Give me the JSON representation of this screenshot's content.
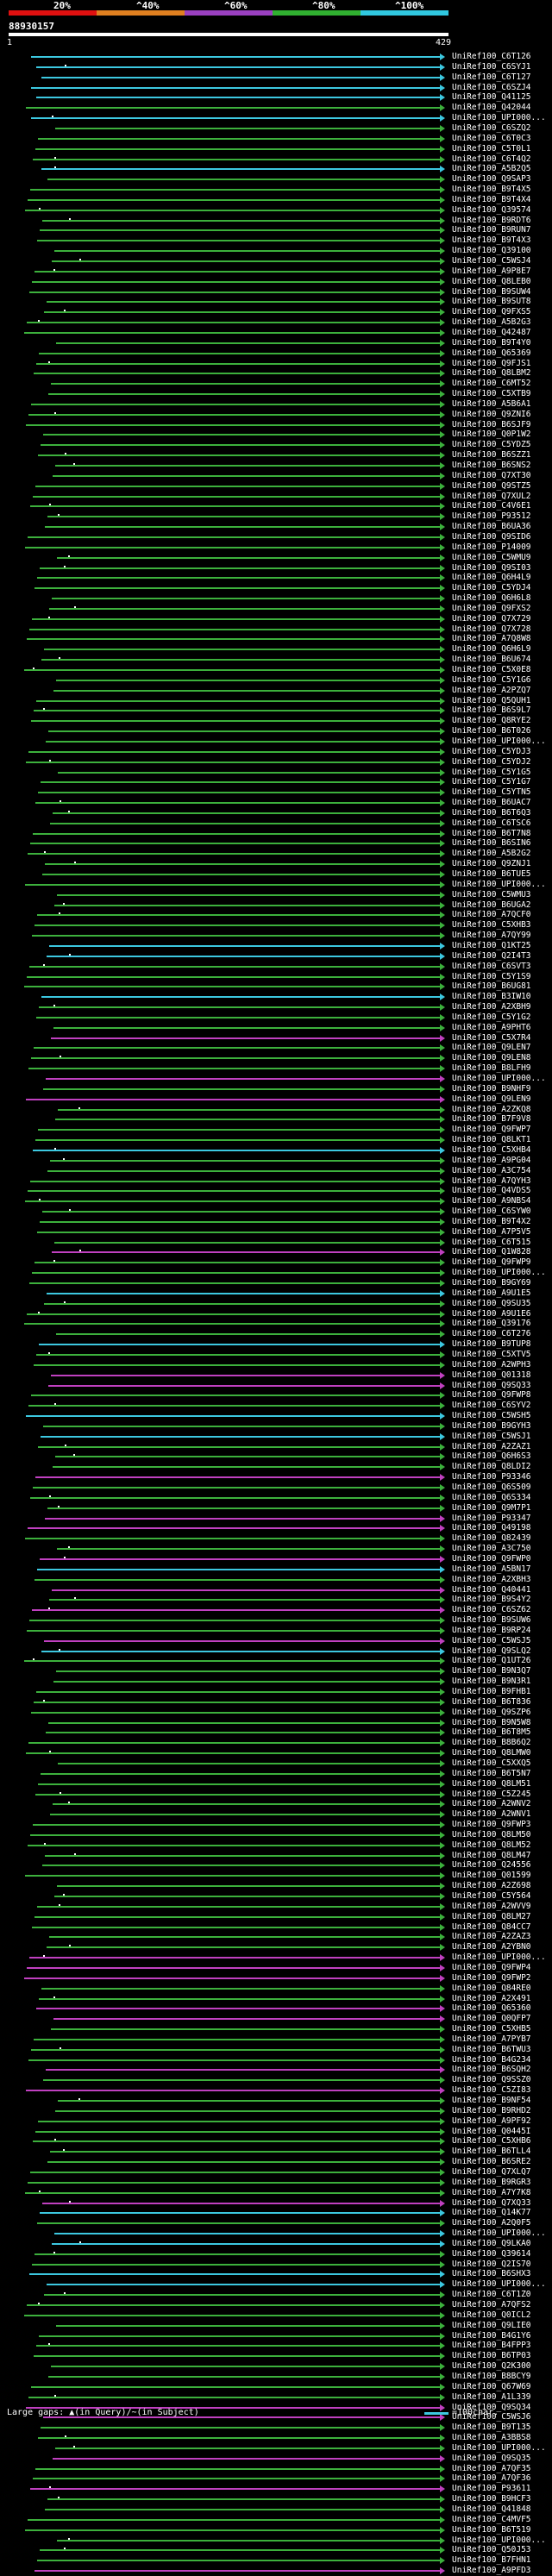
{
  "header": {
    "percent_labels": [
      "20%",
      "^40%",
      "^60%",
      "^80%",
      "^100%"
    ],
    "percent_colors": [
      "#e01010",
      "#e08020",
      "#9a40c0",
      "#30b030",
      "#30c8e0"
    ],
    "query_id": "88930157",
    "start_pos": "1",
    "end_pos": "429"
  },
  "colors": {
    "green": "#3cb03c",
    "cyan": "#3cc8e0",
    "magenta": "#c040c0",
    "white": "#ffffff"
  },
  "hits": [
    {
      "label": "UniRef100_C6T126",
      "color": "cyan"
    },
    {
      "label": "UniRef100_C6SYJ1",
      "color": "cyan"
    },
    {
      "label": "UniRef100_C6T127",
      "color": "cyan"
    },
    {
      "label": "UniRef100_C6SZJ4",
      "color": "cyan"
    },
    {
      "label": "UniRef100_Q41125",
      "color": "cyan"
    },
    {
      "label": "UniRef100_Q42044",
      "color": "green"
    },
    {
      "label": "UniRef100_UPI000...",
      "color": "cyan"
    },
    {
      "label": "UniRef100_C6SZQ2",
      "color": "green"
    },
    {
      "label": "UniRef100_C6T0C3",
      "color": "green"
    },
    {
      "label": "UniRef100_C5T0L1",
      "color": "green"
    },
    {
      "label": "UniRef100_C6T4Q2",
      "color": "green"
    },
    {
      "label": "UniRef100_A5B2Q5",
      "color": "cyan"
    },
    {
      "label": "UniRef100_Q9SAP3",
      "color": "green"
    },
    {
      "label": "UniRef100_B9T4X5",
      "color": "green"
    },
    {
      "label": "UniRef100_B9T4X4",
      "color": "green"
    },
    {
      "label": "UniRef100_Q39574",
      "color": "green"
    },
    {
      "label": "UniRef100_B9RDT6",
      "color": "green"
    },
    {
      "label": "UniRef100_B9RUN7",
      "color": "green"
    },
    {
      "label": "UniRef100_B9T4X3",
      "color": "green"
    },
    {
      "label": "UniRef100_Q39100",
      "color": "green"
    },
    {
      "label": "UniRef100_C5WSJ4",
      "color": "green"
    },
    {
      "label": "UniRef100_A9P8E7",
      "color": "green"
    },
    {
      "label": "UniRef100_Q8LEB0",
      "color": "green"
    },
    {
      "label": "UniRef100_B9SUW4",
      "color": "green"
    },
    {
      "label": "UniRef100_B9SUT8",
      "color": "green"
    },
    {
      "label": "UniRef100_Q9FXS5",
      "color": "green"
    },
    {
      "label": "UniRef100_A5B2G3",
      "color": "green"
    },
    {
      "label": "UniRef100_Q42487",
      "color": "green"
    },
    {
      "label": "UniRef100_B9T4Y0",
      "color": "green"
    },
    {
      "label": "UniRef100_Q65369",
      "color": "green"
    },
    {
      "label": "UniRef100_Q9FJS1",
      "color": "green"
    },
    {
      "label": "UniRef100_Q8LBM2",
      "color": "green"
    },
    {
      "label": "UniRef100_C6MT52",
      "color": "green"
    },
    {
      "label": "UniRef100_C5XTB9",
      "color": "green"
    },
    {
      "label": "UniRef100_A5B6A1",
      "color": "green"
    },
    {
      "label": "UniRef100_Q9ZNI6",
      "color": "green"
    },
    {
      "label": "UniRef100_B6SJF9",
      "color": "green"
    },
    {
      "label": "UniRef100_Q0P1W2",
      "color": "green"
    },
    {
      "label": "UniRef100_C5YDZ5",
      "color": "green"
    },
    {
      "label": "UniRef100_B6SZZ1",
      "color": "green"
    },
    {
      "label": "UniRef100_B6SNS2",
      "color": "green"
    },
    {
      "label": "UniRef100_Q7XT30",
      "color": "green"
    },
    {
      "label": "UniRef100_Q9STZ5",
      "color": "green"
    },
    {
      "label": "UniRef100_Q7XUL2",
      "color": "green"
    },
    {
      "label": "UniRef100_C4V6E1",
      "color": "green"
    },
    {
      "label": "UniRef100_P93512",
      "color": "green"
    },
    {
      "label": "UniRef100_B6UA36",
      "color": "green"
    },
    {
      "label": "UniRef100_Q9SID6",
      "color": "green"
    },
    {
      "label": "UniRef100_P14009",
      "color": "green"
    },
    {
      "label": "UniRef100_C5WMU9",
      "color": "green"
    },
    {
      "label": "UniRef100_Q9SI03",
      "color": "green"
    },
    {
      "label": "UniRef100_Q6H4L9",
      "color": "green"
    },
    {
      "label": "UniRef100_C5YDJ4",
      "color": "green"
    },
    {
      "label": "UniRef100_Q6H6L8",
      "color": "green"
    },
    {
      "label": "UniRef100_Q9FXS2",
      "color": "green"
    },
    {
      "label": "UniRef100_Q7X729",
      "color": "green"
    },
    {
      "label": "UniRef100_Q7X728",
      "color": "green"
    },
    {
      "label": "UniRef100_A7Q8W8",
      "color": "green"
    },
    {
      "label": "UniRef100_Q6H6L9",
      "color": "green"
    },
    {
      "label": "UniRef100_B6U674",
      "color": "green"
    },
    {
      "label": "UniRef100_C5X0E8",
      "color": "green"
    },
    {
      "label": "UniRef100_C5Y1G6",
      "color": "green"
    },
    {
      "label": "UniRef100_A2PZQ7",
      "color": "green"
    },
    {
      "label": "UniRef100_Q5QUH1",
      "color": "green"
    },
    {
      "label": "UniRef100_B6S9L7",
      "color": "green"
    },
    {
      "label": "UniRef100_Q8RYE2",
      "color": "green"
    },
    {
      "label": "UniRef100_B6T026",
      "color": "green"
    },
    {
      "label": "UniRef100_UPI000...",
      "color": "green"
    },
    {
      "label": "UniRef100_C5YDJ3",
      "color": "green"
    },
    {
      "label": "UniRef100_C5YDJ2",
      "color": "green"
    },
    {
      "label": "UniRef100_C5Y1G5",
      "color": "green"
    },
    {
      "label": "UniRef100_C5Y1G7",
      "color": "green"
    },
    {
      "label": "UniRef100_C5YTN5",
      "color": "green"
    },
    {
      "label": "UniRef100_B6UAC7",
      "color": "green"
    },
    {
      "label": "UniRef100_B6T6Q3",
      "color": "green"
    },
    {
      "label": "UniRef100_C6TSC6",
      "color": "green"
    },
    {
      "label": "UniRef100_B6T7N8",
      "color": "green"
    },
    {
      "label": "UniRef100_B6SIN6",
      "color": "green"
    },
    {
      "label": "UniRef100_A5B2G2",
      "color": "green"
    },
    {
      "label": "UniRef100_Q9ZNJ1",
      "color": "green"
    },
    {
      "label": "UniRef100_B6TUE5",
      "color": "green"
    },
    {
      "label": "UniRef100_UPI000...",
      "color": "green"
    },
    {
      "label": "UniRef100_C5WMU3",
      "color": "green"
    },
    {
      "label": "UniRef100_B6UGA2",
      "color": "green"
    },
    {
      "label": "UniRef100_A7QCF0",
      "color": "green"
    },
    {
      "label": "UniRef100_C5XHB3",
      "color": "green"
    },
    {
      "label": "UniRef100_A7QY99",
      "color": "green"
    },
    {
      "label": "UniRef100_Q1KT25",
      "color": "cyan"
    },
    {
      "label": "UniRef100_Q2I4T3",
      "color": "cyan"
    },
    {
      "label": "UniRef100_C6SVT3",
      "color": "green"
    },
    {
      "label": "UniRef100_C5Y1S9",
      "color": "green"
    },
    {
      "label": "UniRef100_B6UG81",
      "color": "green"
    },
    {
      "label": "UniRef100_B3IW10",
      "color": "cyan"
    },
    {
      "label": "UniRef100_A2XBH9",
      "color": "green"
    },
    {
      "label": "UniRef100_C5Y1G2",
      "color": "green"
    },
    {
      "label": "UniRef100_A9PHT6",
      "color": "green"
    },
    {
      "label": "UniRef100_C5X7R4",
      "color": "magenta"
    },
    {
      "label": "UniRef100_Q9LEN7",
      "color": "green"
    },
    {
      "label": "UniRef100_Q9LEN8",
      "color": "green"
    },
    {
      "label": "UniRef100_B8LFH9",
      "color": "green"
    },
    {
      "label": "UniRef100_UPI000...",
      "color": "magenta"
    },
    {
      "label": "UniRef100_B9NHF9",
      "color": "green"
    },
    {
      "label": "UniRef100_Q9LEN9",
      "color": "magenta"
    },
    {
      "label": "UniRef100_A2ZKQ8",
      "color": "green"
    },
    {
      "label": "UniRef100_B7F9V8",
      "color": "green"
    },
    {
      "label": "UniRef100_Q9FWP7",
      "color": "green"
    },
    {
      "label": "UniRef100_Q8LKT1",
      "color": "green"
    },
    {
      "label": "UniRef100_C5XHB4",
      "color": "cyan"
    },
    {
      "label": "UniRef100_A9PG04",
      "color": "green"
    },
    {
      "label": "UniRef100_A3C754",
      "color": "green"
    },
    {
      "label": "UniRef100_A7QYH3",
      "color": "green"
    },
    {
      "label": "UniRef100_Q4VDS5",
      "color": "green"
    },
    {
      "label": "UniRef100_A9NBS4",
      "color": "green"
    },
    {
      "label": "UniRef100_C6SYW0",
      "color": "green"
    },
    {
      "label": "UniRef100_B9T4X2",
      "color": "green"
    },
    {
      "label": "UniRef100_A7P5V5",
      "color": "green"
    },
    {
      "label": "UniRef100_C6T515",
      "color": "green"
    },
    {
      "label": "UniRef100_Q1W828",
      "color": "magenta"
    },
    {
      "label": "UniRef100_Q9FWP9",
      "color": "green"
    },
    {
      "label": "UniRef100_UPI000...",
      "color": "green"
    },
    {
      "label": "UniRef100_B9GY69",
      "color": "green"
    },
    {
      "label": "UniRef100_A9U1E5",
      "color": "cyan"
    },
    {
      "label": "UniRef100_Q9SU35",
      "color": "green"
    },
    {
      "label": "UniRef100_A9U1E6",
      "color": "green"
    },
    {
      "label": "UniRef100_Q39176",
      "color": "green"
    },
    {
      "label": "UniRef100_C6T276",
      "color": "green"
    },
    {
      "label": "UniRef100_B9TUP8",
      "color": "cyan"
    },
    {
      "label": "UniRef100_C5XTV5",
      "color": "green"
    },
    {
      "label": "UniRef100_A2WPH3",
      "color": "green"
    },
    {
      "label": "UniRef100_Q01318",
      "color": "magenta"
    },
    {
      "label": "UniRef100_Q9SQ33",
      "color": "magenta"
    },
    {
      "label": "UniRef100_Q9FWP8",
      "color": "green"
    },
    {
      "label": "UniRef100_C6SYV2",
      "color": "green"
    },
    {
      "label": "UniRef100_C5WSH5",
      "color": "cyan"
    },
    {
      "label": "UniRef100_B9GYH3",
      "color": "green"
    },
    {
      "label": "UniRef100_C5WSJ1",
      "color": "cyan"
    },
    {
      "label": "UniRef100_A2ZAZ1",
      "color": "green"
    },
    {
      "label": "UniRef100_Q6H6S3",
      "color": "green"
    },
    {
      "label": "UniRef100_Q8LDI2",
      "color": "green"
    },
    {
      "label": "UniRef100_P93346",
      "color": "magenta"
    },
    {
      "label": "UniRef100_Q6S509",
      "color": "green"
    },
    {
      "label": "UniRef100_Q6S334",
      "color": "green"
    },
    {
      "label": "UniRef100_Q9M7P1",
      "color": "green"
    },
    {
      "label": "UniRef100_P93347",
      "color": "magenta"
    },
    {
      "label": "UniRef100_Q49198",
      "color": "magenta"
    },
    {
      "label": "UniRef100_Q82439",
      "color": "green"
    },
    {
      "label": "UniRef100_A3C750",
      "color": "green"
    },
    {
      "label": "UniRef100_Q9FWP0",
      "color": "magenta"
    },
    {
      "label": "UniRef100_A5BN17",
      "color": "cyan"
    },
    {
      "label": "UniRef100_A2XBH3",
      "color": "green"
    },
    {
      "label": "UniRef100_Q40441",
      "color": "magenta"
    },
    {
      "label": "UniRef100_B9S4Y2",
      "color": "green"
    },
    {
      "label": "UniRef100_C6SZ62",
      "color": "magenta"
    },
    {
      "label": "UniRef100_B9SUW6",
      "color": "green"
    },
    {
      "label": "UniRef100_B9RP24",
      "color": "green"
    },
    {
      "label": "UniRef100_C5WSJ5",
      "color": "magenta"
    },
    {
      "label": "UniRef100_Q9SLQ2",
      "color": "cyan"
    },
    {
      "label": "UniRef100_Q1UT26",
      "color": "green"
    },
    {
      "label": "UniRef100_B9N3Q7",
      "color": "green"
    },
    {
      "label": "UniRef100_B9N3R1",
      "color": "green"
    },
    {
      "label": "UniRef100_B9FHB1",
      "color": "green"
    },
    {
      "label": "UniRef100_B6T836",
      "color": "green"
    },
    {
      "label": "UniRef100_Q9SZP6",
      "color": "green"
    },
    {
      "label": "UniRef100_B9N5W8",
      "color": "green"
    },
    {
      "label": "UniRef100_B6T8M5",
      "color": "green"
    },
    {
      "label": "UniRef100_B8B6Q2",
      "color": "green"
    },
    {
      "label": "UniRef100_Q8LMW0",
      "color": "green"
    },
    {
      "label": "UniRef100_C5XXQ5",
      "color": "green"
    },
    {
      "label": "UniRef100_B6T5N7",
      "color": "green"
    },
    {
      "label": "UniRef100_Q8LM51",
      "color": "green"
    },
    {
      "label": "UniRef100_C5Z245",
      "color": "green"
    },
    {
      "label": "UniRef100_A2WNV2",
      "color": "green"
    },
    {
      "label": "UniRef100_A2WNV1",
      "color": "green"
    },
    {
      "label": "UniRef100_Q9FWP3",
      "color": "green"
    },
    {
      "label": "UniRef100_Q8LM50",
      "color": "green"
    },
    {
      "label": "UniRef100_Q8LM52",
      "color": "green"
    },
    {
      "label": "UniRef100_Q8LM47",
      "color": "green"
    },
    {
      "label": "UniRef100_Q24556",
      "color": "green"
    },
    {
      "label": "UniRef100_Q01599",
      "color": "green"
    },
    {
      "label": "UniRef100_A2Z698",
      "color": "green"
    },
    {
      "label": "UniRef100_C5Y564",
      "color": "green"
    },
    {
      "label": "UniRef100_A2WVV9",
      "color": "green"
    },
    {
      "label": "UniRef100_Q8LM27",
      "color": "green"
    },
    {
      "label": "UniRef100_Q84CC7",
      "color": "green"
    },
    {
      "label": "UniRef100_A2ZAZ3",
      "color": "green"
    },
    {
      "label": "UniRef100_A2YBN0",
      "color": "green"
    },
    {
      "label": "UniRef100_UPI000...",
      "color": "magenta"
    },
    {
      "label": "UniRef100_Q9FWP4",
      "color": "magenta"
    },
    {
      "label": "UniRef100_Q9FWP2",
      "color": "magenta"
    },
    {
      "label": "UniRef100_Q84RE0",
      "color": "green"
    },
    {
      "label": "UniRef100_A2X491",
      "color": "green"
    },
    {
      "label": "UniRef100_Q65360",
      "color": "magenta"
    },
    {
      "label": "UniRef100_Q0QFP7",
      "color": "magenta"
    },
    {
      "label": "UniRef100_C5XHB5",
      "color": "green"
    },
    {
      "label": "UniRef100_A7PYB7",
      "color": "green"
    },
    {
      "label": "UniRef100_B6TWU3",
      "color": "green"
    },
    {
      "label": "UniRef100_B4G234",
      "color": "green"
    },
    {
      "label": "UniRef100_B6SQH2",
      "color": "magenta"
    },
    {
      "label": "UniRef100_Q9SSZ0",
      "color": "green"
    },
    {
      "label": "UniRef100_C5ZI83",
      "color": "magenta"
    },
    {
      "label": "UniRef100_B9NF54",
      "color": "green"
    },
    {
      "label": "UniRef100_B9RHD2",
      "color": "green"
    },
    {
      "label": "UniRef100_A9PF92",
      "color": "green"
    },
    {
      "label": "UniRef100_Q0445I",
      "color": "green"
    },
    {
      "label": "UniRef100_C5XHB6",
      "color": "green"
    },
    {
      "label": "UniRef100_B6TLL4",
      "color": "green"
    },
    {
      "label": "UniRef100_B6SRE2",
      "color": "green"
    },
    {
      "label": "UniRef100_Q7XLQ7",
      "color": "green"
    },
    {
      "label": "UniRef100_B9RGR3",
      "color": "green"
    },
    {
      "label": "UniRef100_A7Y7K8",
      "color": "green"
    },
    {
      "label": "UniRef100_Q7XQ33",
      "color": "magenta"
    },
    {
      "label": "UniRef100_Q14K77",
      "color": "cyan"
    },
    {
      "label": "UniRef100_A2Q0F5",
      "color": "green"
    },
    {
      "label": "UniRef100_UPI000...",
      "color": "cyan"
    },
    {
      "label": "UniRef100_Q9LKA0",
      "color": "cyan"
    },
    {
      "label": "UniRef100_Q39614",
      "color": "green"
    },
    {
      "label": "UniRef100_Q2IS70",
      "color": "green"
    },
    {
      "label": "UniRef100_B6SHX3",
      "color": "cyan"
    },
    {
      "label": "UniRef100_UPI000...",
      "color": "cyan"
    },
    {
      "label": "UniRef100_C6T1Z0",
      "color": "green"
    },
    {
      "label": "UniRef100_A7QFS2",
      "color": "green"
    },
    {
      "label": "UniRef100_Q0ICL2",
      "color": "green"
    },
    {
      "label": "UniRef100_Q9LIE0",
      "color": "green"
    },
    {
      "label": "UniRef100_B4G1Y6",
      "color": "green"
    },
    {
      "label": "UniRef100_B4FPP3",
      "color": "green"
    },
    {
      "label": "UniRef100_B6TP03",
      "color": "green"
    },
    {
      "label": "UniRef100_Q2K300",
      "color": "green"
    },
    {
      "label": "UniRef100_B8BCY9",
      "color": "green"
    },
    {
      "label": "UniRef100_Q67W69",
      "color": "green"
    },
    {
      "label": "UniRef100_A1L339",
      "color": "green"
    },
    {
      "label": "UniRef100_Q9SQ34",
      "color": "magenta"
    },
    {
      "label": "UniRef100_C5WSJ6",
      "color": "magenta"
    },
    {
      "label": "UniRef100_B9T135",
      "color": "green"
    },
    {
      "label": "UniRef100_A3BBS8",
      "color": "green"
    },
    {
      "label": "UniRef100_UPI000...",
      "color": "green"
    },
    {
      "label": "UniRef100_Q9SQ35",
      "color": "magenta"
    },
    {
      "label": "UniRef100_A7QF35",
      "color": "green"
    },
    {
      "label": "UniRef100_A7QF36",
      "color": "green"
    },
    {
      "label": "UniRef100_P93611",
      "color": "magenta"
    },
    {
      "label": "UniRef100_B9HCF3",
      "color": "green"
    },
    {
      "label": "UniRef100_Q41848",
      "color": "green"
    },
    {
      "label": "UniRef100_C4MVF5",
      "color": "green"
    },
    {
      "label": "UniRef100_B6T519",
      "color": "green"
    },
    {
      "label": "UniRef100_UPI000...",
      "color": "green"
    },
    {
      "label": "UniRef100_Q50J53",
      "color": "green"
    },
    {
      "label": "UniRef100_B7FHN1",
      "color": "green"
    },
    {
      "label": "UniRef100_A9PFD3",
      "color": "magenta"
    }
  ],
  "footer": {
    "gap_legend": "Large gaps: ▲(in Query)/~(in Subject)",
    "scale_legend": "=100char."
  }
}
